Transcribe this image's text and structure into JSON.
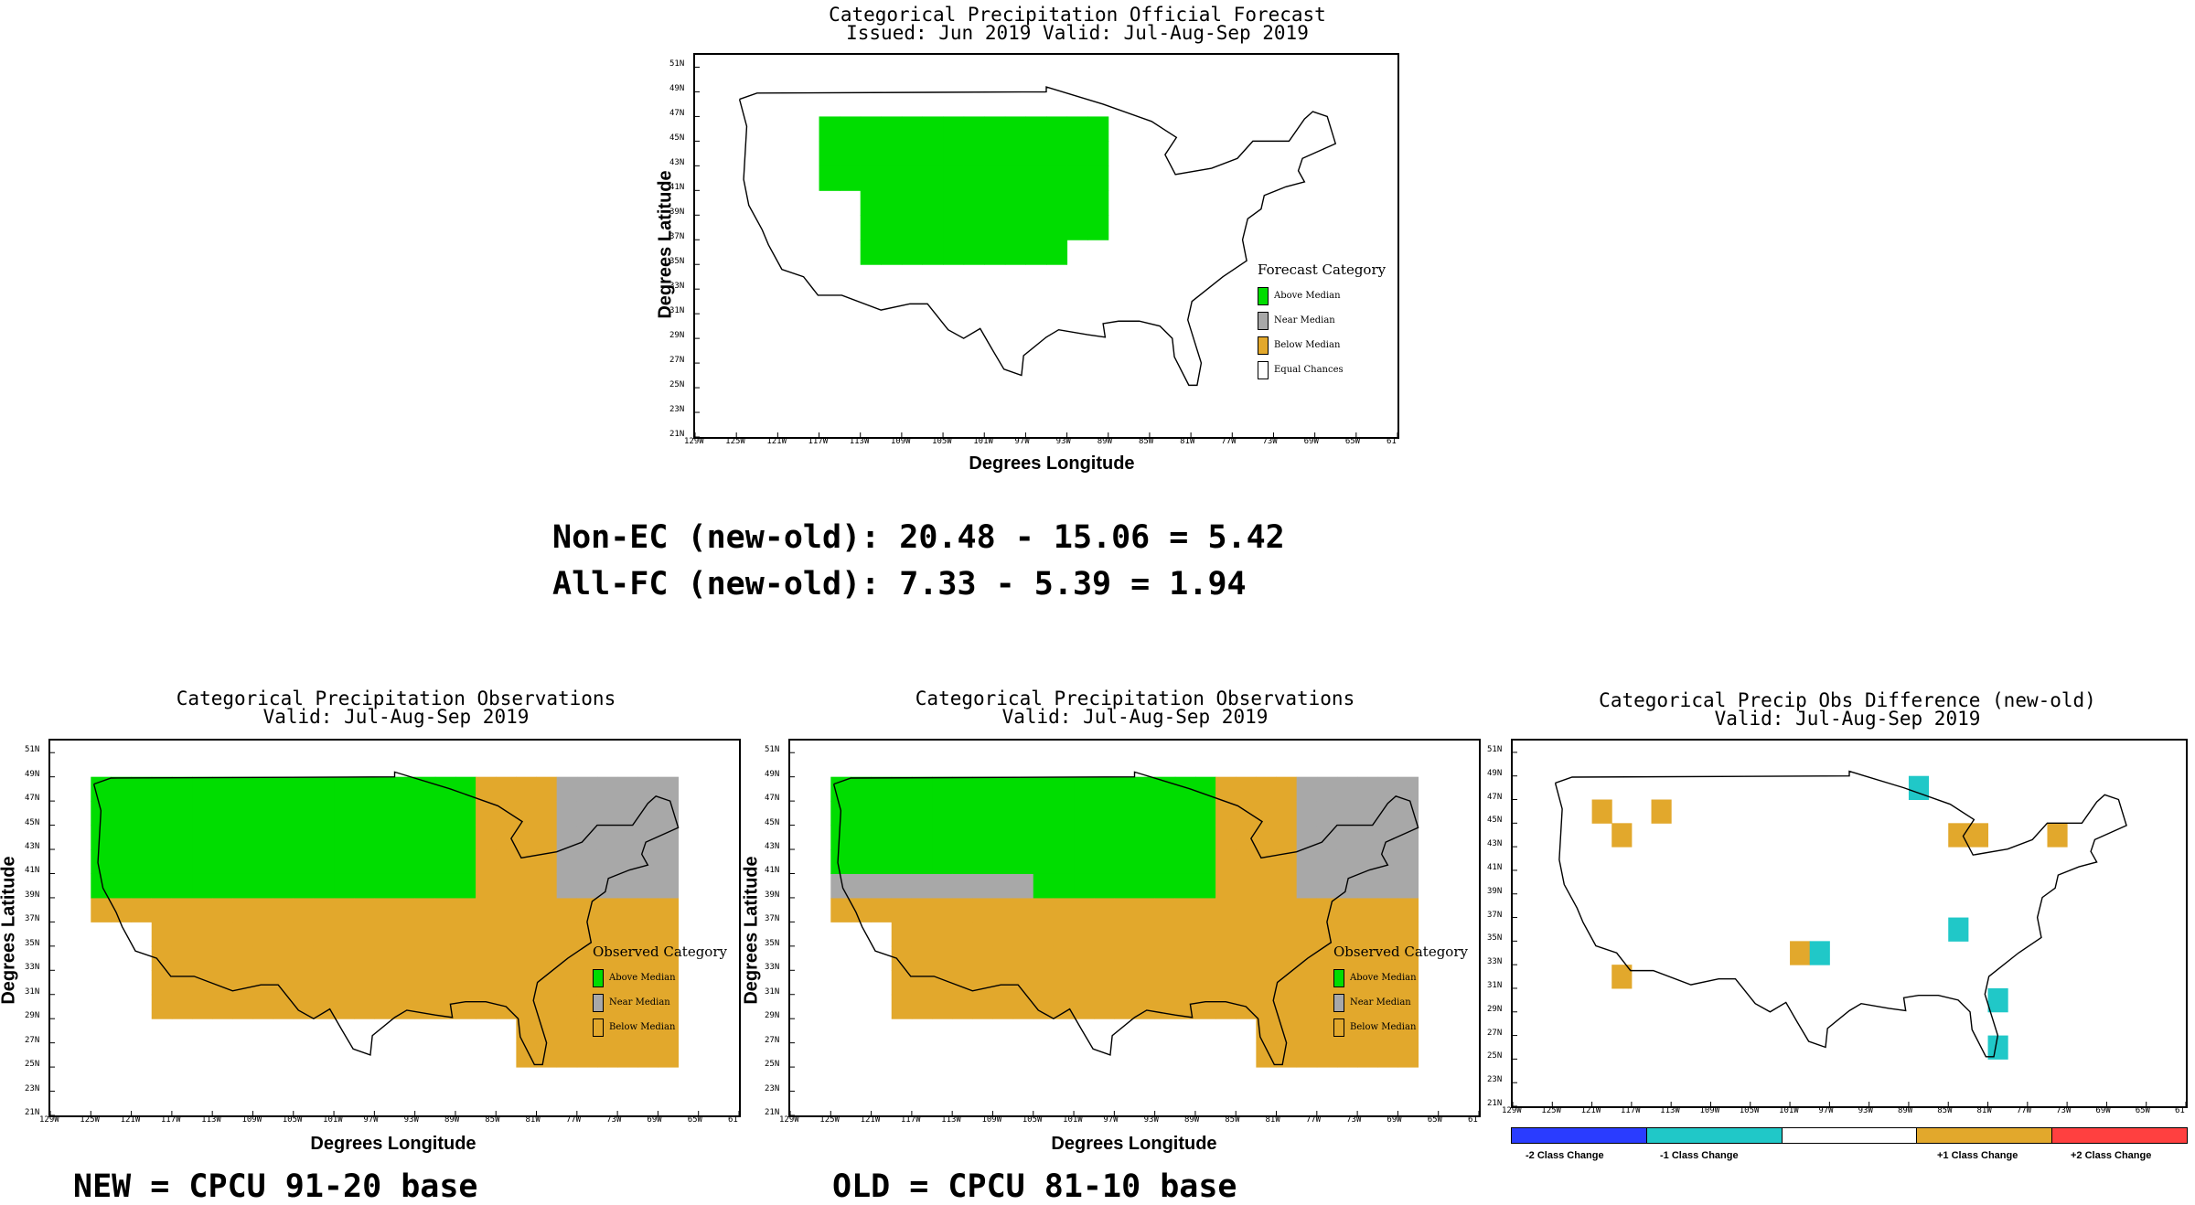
{
  "colors": {
    "above_median": "#00dd00",
    "near_median": "#a8a8a8",
    "below_median": "#e2a82c",
    "equal_chances": "#ffffff",
    "minus2": "#2a3cff",
    "minus1": "#20c8c8",
    "plus1": "#e2a82c",
    "plus2": "#ff4040"
  },
  "forecast_panel": {
    "title_line1": "Categorical Precipitation Official Forecast",
    "title_line2": "Issued: Jun 2019 Valid: Jul-Aug-Sep 2019",
    "ylabel": "Degrees Latitude",
    "xlabel": "Degrees Longitude",
    "legend_title": "Forecast Category",
    "legend_items": [
      {
        "label": "Above Median",
        "color": "#00dd00"
      },
      {
        "label": "Near Median",
        "color": "#a8a8a8"
      },
      {
        "label": "Below Median",
        "color": "#e2a82c"
      },
      {
        "label": "Equal Chances",
        "color": "#ffffff"
      }
    ]
  },
  "stats": {
    "line1": "Non-EC (new-old): 20.48 - 15.06 = 5.42",
    "line2": "All-FC (new-old): 7.33 - 5.39 = 1.94"
  },
  "obs_new_panel": {
    "title_line1": "Categorical Precipitation Observations",
    "title_line2": "Valid: Jul-Aug-Sep 2019",
    "ylabel": "Degrees Latitude",
    "xlabel": "Degrees Longitude",
    "legend_title": "Observed Category",
    "legend_items": [
      {
        "label": "Above Median",
        "color": "#00dd00"
      },
      {
        "label": "Near Median",
        "color": "#a8a8a8"
      },
      {
        "label": "Below Median",
        "color": "#e2a82c"
      }
    ],
    "caption": "NEW = CPCU 91-20 base"
  },
  "obs_old_panel": {
    "title_line1": "Categorical Precipitation Observations",
    "title_line2": "Valid: Jul-Aug-Sep 2019",
    "ylabel": "Degrees Latitude",
    "xlabel": "Degrees Longitude",
    "legend_title": "Observed Category",
    "legend_items": [
      {
        "label": "Above Median",
        "color": "#00dd00"
      },
      {
        "label": "Near Median",
        "color": "#a8a8a8"
      },
      {
        "label": "Below Median",
        "color": "#e2a82c"
      }
    ],
    "caption": "OLD = CPCU 81-10 base"
  },
  "diff_panel": {
    "title_line1": "Categorical Precip Obs Difference (new-old)",
    "title_line2": "Valid: Jul-Aug-Sep 2019",
    "colorbar_labels": [
      "-2 Class Change",
      "-1 Class Change",
      "+1 Class Change",
      "+2 Class Change"
    ]
  },
  "lat_ticks": [
    "51N",
    "49N",
    "47N",
    "45N",
    "43N",
    "41N",
    "39N",
    "37N",
    "35N",
    "33N",
    "31N",
    "29N",
    "27N",
    "25N",
    "23N",
    "21N"
  ],
  "lon_ticks": [
    "129W",
    "125W",
    "121W",
    "117W",
    "113W",
    "109W",
    "105W",
    "101W",
    "97W",
    "93W",
    "89W",
    "85W",
    "81W",
    "77W",
    "73W",
    "69W",
    "65W",
    "61"
  ]
}
